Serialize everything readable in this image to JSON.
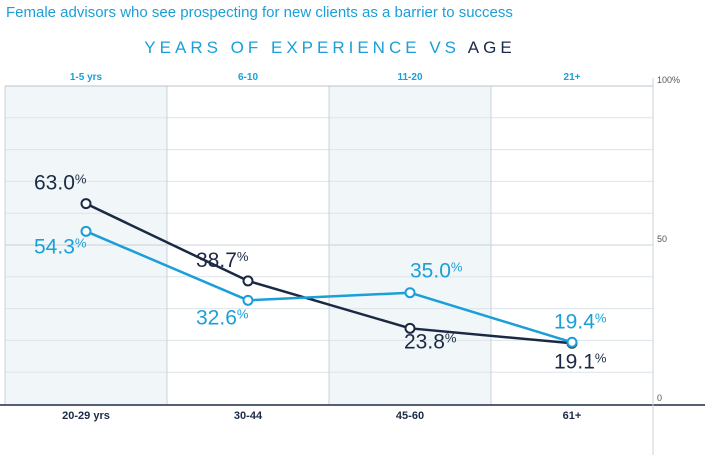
{
  "title": "Female advisors who see prospecting for new clients as a barrier to success",
  "subtitle": {
    "part1": "YEARS OF EXPERIENCE",
    "part2": "VS",
    "part3": "AGE"
  },
  "colors": {
    "experience": "#1a9fd8",
    "age": "#1b2a44"
  },
  "chart_data": {
    "type": "line",
    "title": "Female advisors who see prospecting for new clients as a barrier to success",
    "subtitle": "YEARS OF EXPERIENCE VS AGE",
    "ylim": [
      0,
      100
    ],
    "y_ticks": [
      "100%",
      "50",
      "0"
    ],
    "categories_top": [
      "1-5 yrs",
      "6-10",
      "11-20",
      "21+"
    ],
    "categories_bottom": [
      "20-29 yrs",
      "30-44",
      "45-60",
      "61+"
    ],
    "grid": true,
    "series": [
      {
        "values": [
          63.0,
          38.7,
          23.8,
          19.1
        ],
        "labels": [
          "63.0",
          "38.7",
          "23.8",
          "19.1"
        ],
        "color": "#1b2a44",
        "axis": "bottom"
      },
      {
        "values": [
          54.3,
          32.6,
          35.0,
          19.4
        ],
        "labels": [
          "54.3",
          "32.6",
          "35.0",
          "19.4"
        ],
        "color": "#1a9fd8",
        "axis": "top"
      }
    ],
    "percent_sign": "%"
  }
}
